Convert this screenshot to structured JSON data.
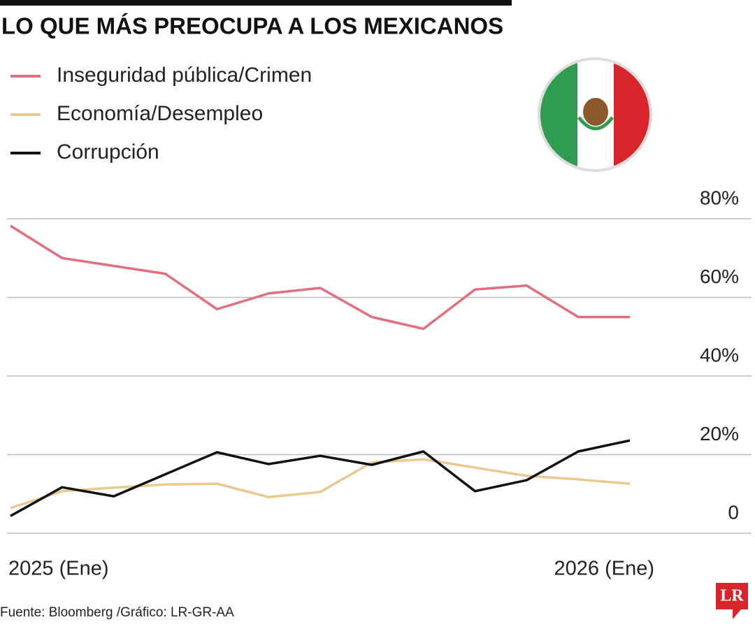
{
  "chart_data": {
    "type": "line",
    "title": "LO QUE MÁS PREOCUPA A LOS MEXICANOS",
    "categories": [
      "2025 (Ene)",
      null,
      null,
      null,
      null,
      null,
      null,
      null,
      null,
      null,
      null,
      null,
      "2026 (Ene)"
    ],
    "series": [
      {
        "name": "Inseguridad pública/Crimen",
        "color": "#e0707f",
        "values": [
          78.2,
          70,
          68,
          66,
          57,
          61,
          62.4,
          55,
          52,
          62,
          63,
          55,
          55
        ]
      },
      {
        "name": "Economía/Desempleo",
        "color": "#e8c98f",
        "values": [
          6.4,
          10.7,
          11.6,
          12.4,
          12.6,
          9.2,
          10.5,
          18,
          18.8,
          16.7,
          14.6,
          13.7,
          12.6
        ]
      },
      {
        "name": "Corrupción",
        "color": "#111111",
        "values": [
          4.4,
          11.7,
          9.4,
          15,
          20.6,
          17.6,
          19.7,
          17.4,
          20.8,
          10.7,
          13.5,
          20.8,
          23.6
        ]
      }
    ],
    "ylim": [
      0,
      80
    ],
    "yticks": [
      0,
      {
        "value": 20,
        "label": "20%"
      },
      {
        "value": 40,
        "label": "40%"
      },
      {
        "value": 60,
        "label": "60%"
      },
      {
        "value": 80,
        "label": "80%"
      }
    ],
    "grid": true,
    "source": "Fuente: Bloomberg /Gráfico: LR-GR-AA",
    "logo": "LR"
  }
}
